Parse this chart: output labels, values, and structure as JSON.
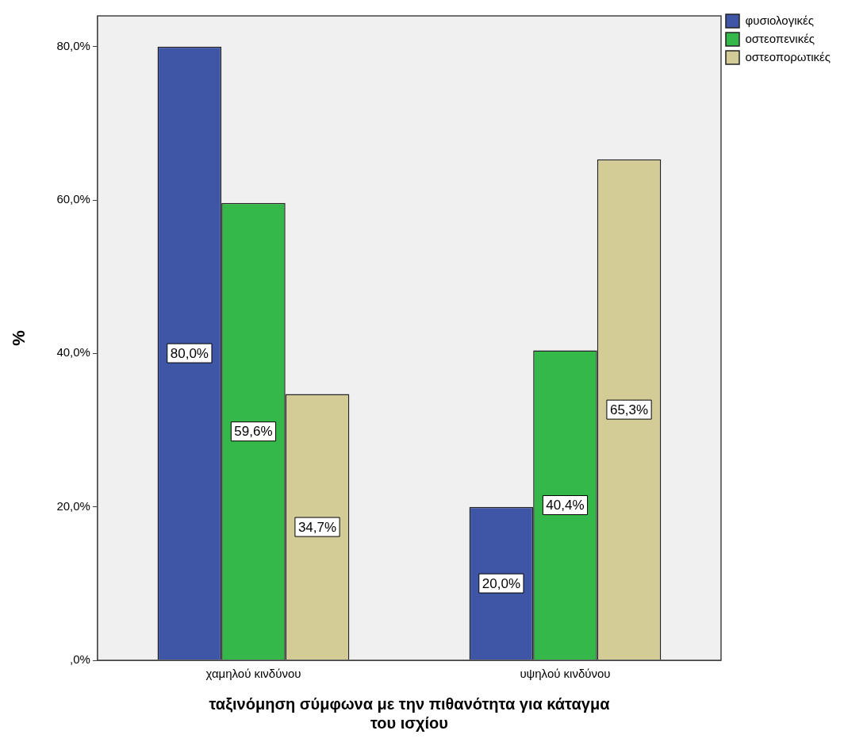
{
  "chart_data": {
    "type": "bar",
    "xlabel": "ταξινόμηση σύμφωνα με την πιθανότητα για κάταγμα\nτου ισχίου",
    "ylabel": "%",
    "categories": [
      "χαμηλού κινδύνου",
      "υψηλού κινδύνου"
    ],
    "series": [
      {
        "name": "φυσιολογικές",
        "color": "#3f56a6",
        "values": [
          80.0,
          20.0
        ],
        "value_labels": [
          "80,0%",
          "20,0%"
        ]
      },
      {
        "name": "οστεοπενικές",
        "color": "#33b849",
        "values": [
          59.6,
          40.4
        ],
        "value_labels": [
          "59,6%",
          "40,4%"
        ]
      },
      {
        "name": "οστεοπορωτικές",
        "color": "#d4cc97",
        "values": [
          34.7,
          65.3
        ],
        "value_labels": [
          "34,7%",
          "65,3%"
        ]
      }
    ],
    "ylim": [
      0,
      84
    ],
    "yticks": [
      {
        "value": 0,
        "label": ",0%"
      },
      {
        "value": 20,
        "label": "20,0%"
      },
      {
        "value": 40,
        "label": "40,0%"
      },
      {
        "value": 60,
        "label": "60,0%"
      },
      {
        "value": 80,
        "label": "80,0%"
      }
    ],
    "grid": false,
    "legend": "top right"
  }
}
